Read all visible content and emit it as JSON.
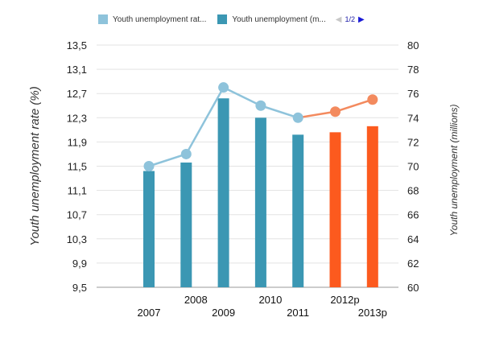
{
  "legend": {
    "items": [
      {
        "label": "Youth unemployment rat...",
        "color": "#8ec3db"
      },
      {
        "label": "Youth unemployment (m...",
        "color": "#3b97b3"
      }
    ],
    "page": "1/2",
    "prev_icon": "triangle-left-icon",
    "next_icon": "triangle-right-icon"
  },
  "chart_data": {
    "type": "bar",
    "title": "",
    "categories": [
      "2007",
      "2008",
      "2009",
      "2010",
      "2011",
      "2012p",
      "2013p"
    ],
    "xlabel": "",
    "ylabel": "Youth unemployment rate (%)",
    "y2label": "Youth unemployment (millions)",
    "ylim": [
      9.5,
      13.5
    ],
    "y2lim": [
      60,
      80
    ],
    "y_ticks": [
      "13,5",
      "13,1",
      "12,7",
      "12,3",
      "11,9",
      "11,5",
      "11,1",
      "10,7",
      "10,3",
      "9,9",
      "9,5"
    ],
    "y2_ticks": [
      "80",
      "78",
      "76",
      "74",
      "72",
      "70",
      "68",
      "66",
      "64",
      "62",
      "60"
    ],
    "series": [
      {
        "name": "Youth unemployment (millions)",
        "type": "bar",
        "axis": "right",
        "values": [
          69.6,
          70.3,
          75.6,
          74.0,
          72.6,
          72.8,
          73.3
        ],
        "colors": [
          "#3b97b3",
          "#3b97b3",
          "#3b97b3",
          "#3b97b3",
          "#3b97b3",
          "#fc5a1e",
          "#fc5a1e"
        ]
      },
      {
        "name": "Youth unemployment rate (%)",
        "type": "line",
        "axis": "left",
        "values": [
          11.5,
          11.7,
          12.8,
          12.5,
          12.3,
          12.4,
          12.6
        ],
        "colors": [
          "#8ec3db",
          "#8ec3db",
          "#8ec3db",
          "#8ec3db",
          "#8ec3db",
          "#f38a5e",
          "#f38a5e"
        ]
      }
    ],
    "grid": true
  }
}
